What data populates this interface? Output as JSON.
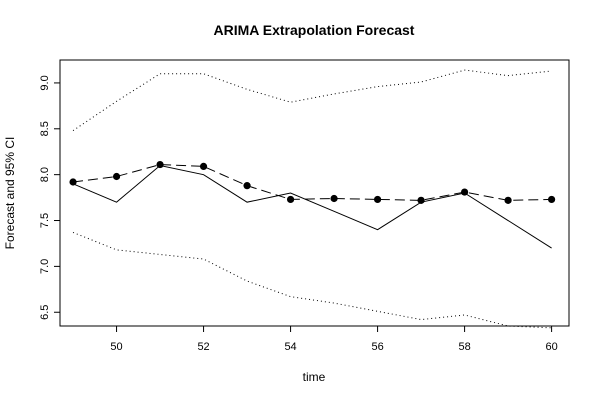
{
  "chart_data": {
    "type": "line",
    "title": "ARIMA Extrapolation Forecast",
    "xlabel": "time",
    "ylabel": "Forecast and 95% CI",
    "xlim": [
      48.7,
      60.4
    ],
    "ylim": [
      6.35,
      9.25
    ],
    "x_ticks": [
      50,
      52,
      54,
      56,
      58,
      60
    ],
    "y_ticks": [
      6.5,
      7.0,
      7.5,
      8.0,
      8.5,
      9.0
    ],
    "grid": false,
    "legend": "none",
    "x": [
      49,
      50,
      51,
      52,
      53,
      54,
      55,
      56,
      57,
      58,
      59,
      60
    ],
    "series": [
      {
        "role": "actual",
        "style": "solid",
        "values": [
          7.9,
          7.7,
          8.1,
          8.0,
          7.7,
          7.8,
          7.6,
          7.4,
          7.7,
          7.8,
          7.5,
          7.2
        ]
      },
      {
        "role": "forecast",
        "style": "dashed-with-points",
        "values": [
          7.92,
          7.98,
          8.11,
          8.09,
          7.88,
          7.73,
          7.74,
          7.73,
          7.72,
          7.81,
          7.72,
          7.73
        ]
      },
      {
        "role": "upper-95",
        "style": "dotted",
        "values": [
          8.48,
          8.8,
          9.1,
          9.1,
          8.93,
          8.79,
          8.88,
          8.96,
          9.01,
          9.14,
          9.08,
          9.13
        ]
      },
      {
        "role": "lower-95",
        "style": "dotted",
        "values": [
          7.37,
          7.18,
          7.13,
          7.08,
          6.84,
          6.67,
          6.6,
          6.51,
          6.42,
          6.47,
          6.35,
          6.33
        ]
      }
    ]
  }
}
